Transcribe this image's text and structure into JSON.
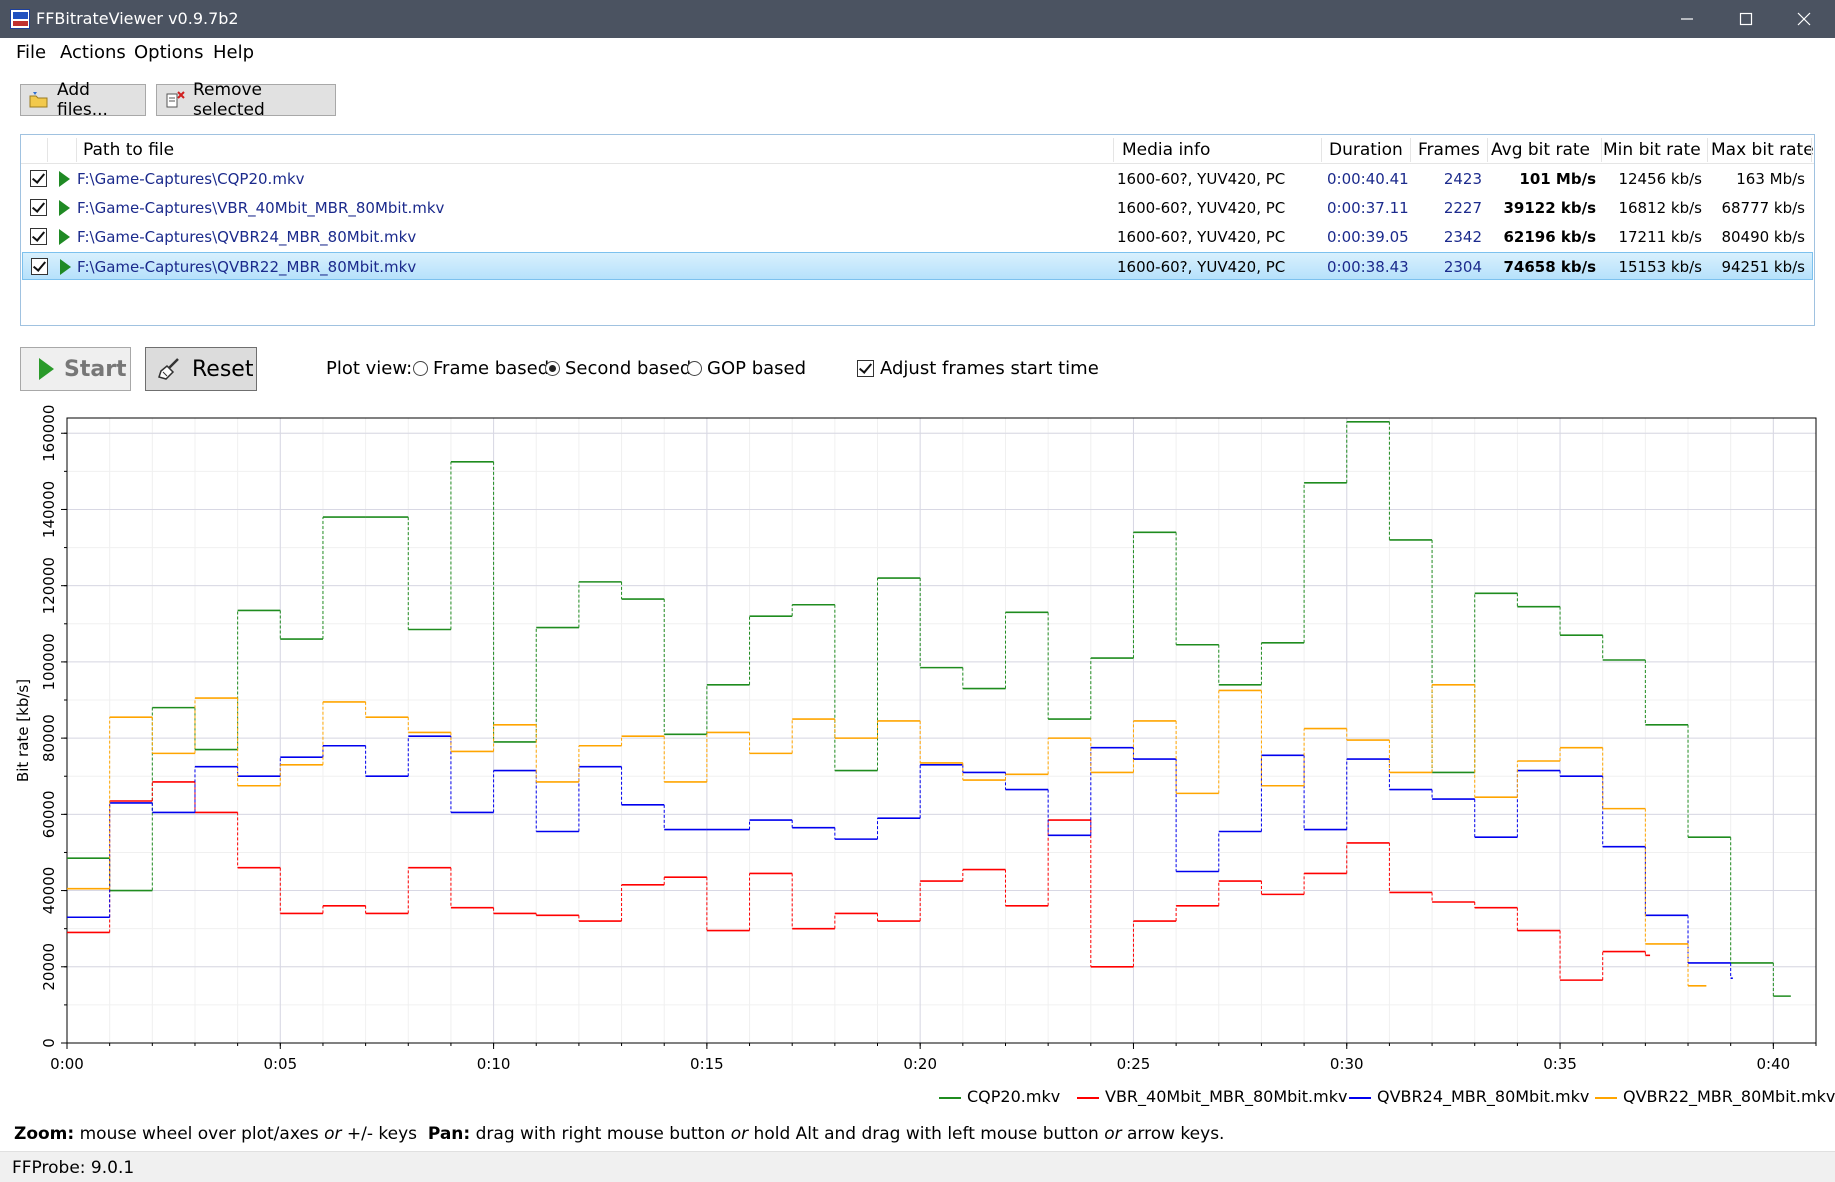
{
  "window": {
    "title": "FFBitrateViewer v0.9.7b2"
  },
  "menu": [
    "File",
    "Actions",
    "Options",
    "Help"
  ],
  "toolbar": {
    "add_files": "Add files...",
    "remove_selected": "Remove selected"
  },
  "file_table": {
    "headers": [
      "Path to file",
      "Media info",
      "Duration",
      "Frames",
      "Avg bit rate",
      "Min bit rate",
      "Max bit rate"
    ],
    "rows": [
      {
        "path": "F:\\Game-Captures\\CQP20.mkv",
        "media": "1600-60?, YUV420, PC",
        "duration": "0:00:40.41",
        "frames": "2423",
        "avg": "101 Mb/s",
        "min": "12456 kb/s",
        "max": "163 Mb/s",
        "checked": true,
        "selected": false
      },
      {
        "path": "F:\\Game-Captures\\VBR_40Mbit_MBR_80Mbit.mkv",
        "media": "1600-60?, YUV420, PC",
        "duration": "0:00:37.11",
        "frames": "2227",
        "avg": "39122 kb/s",
        "min": "16812 kb/s",
        "max": "68777 kb/s",
        "checked": true,
        "selected": false
      },
      {
        "path": "F:\\Game-Captures\\QVBR24_MBR_80Mbit.mkv",
        "media": "1600-60?, YUV420, PC",
        "duration": "0:00:39.05",
        "frames": "2342",
        "avg": "62196 kb/s",
        "min": "17211 kb/s",
        "max": "80490 kb/s",
        "checked": true,
        "selected": false
      },
      {
        "path": "F:\\Game-Captures\\QVBR22_MBR_80Mbit.mkv",
        "media": "1600-60?, YUV420, PC",
        "duration": "0:00:38.43",
        "frames": "2304",
        "avg": "74658 kb/s",
        "min": "15153 kb/s",
        "max": "94251 kb/s",
        "checked": true,
        "selected": true
      }
    ]
  },
  "controls": {
    "start": "Start",
    "reset": "Reset",
    "plot_view_label": "Plot view:",
    "plot_view_options": [
      "Frame based",
      "Second based",
      "GOP based"
    ],
    "plot_view_selected": "Second based",
    "adjust_label": "Adjust frames start time",
    "adjust_checked": true
  },
  "hint": {
    "zoom_label": "Zoom:",
    "zoom_text": " mouse wheel over plot/axes ",
    "or1": "or",
    "zoom_text2": " +/- keys  ",
    "pan_label": "Pan:",
    "pan_text": " drag with right mouse button ",
    "or2": "or",
    "pan_text2": " hold Alt and drag with left mouse button ",
    "or3": "or",
    "pan_text3": " arrow keys."
  },
  "status": "FFProbe: 9.0.1",
  "colors": {
    "cqp20": "#1f8c1f",
    "vbr": "#ff0000",
    "qvbr24": "#0000ee",
    "qvbr22": "#ffa500"
  },
  "chart_data": {
    "type": "line",
    "step": true,
    "ylabel": "Bit rate [kb/s]",
    "xlim": [
      0,
      41
    ],
    "ylim": [
      0,
      164000
    ],
    "xticks": [
      0,
      5,
      10,
      15,
      20,
      25,
      30,
      35,
      40
    ],
    "xtick_labels": [
      "0:00",
      "0:05",
      "0:10",
      "0:15",
      "0:20",
      "0:25",
      "0:30",
      "0:35",
      "0:40"
    ],
    "yticks": [
      0,
      20000,
      40000,
      60000,
      80000,
      100000,
      120000,
      140000,
      160000
    ],
    "ytick_labels": [
      "0",
      "20000",
      "40000",
      "60000",
      "80000",
      "100000",
      "120000",
      "140000",
      "160000"
    ],
    "grid": true,
    "legend_position": "bottom-right",
    "series": [
      {
        "name": "CQP20.mkv",
        "x_start": 0,
        "end": 40.41,
        "values": [
          48500,
          40000,
          88000,
          77000,
          113500,
          106000,
          138000,
          138000,
          108500,
          152500,
          79000,
          109000,
          121000,
          116500,
          81000,
          94000,
          112000,
          115000,
          71500,
          122000,
          98500,
          93000,
          113000,
          85000,
          101000,
          134000,
          104500,
          94000,
          105000,
          147000,
          163000,
          132000,
          71000,
          118000,
          114500,
          107000,
          100500,
          83500,
          54000,
          21000,
          12300
        ]
      },
      {
        "name": "VBR_40Mbit_MBR_80Mbit.mkv",
        "x_start": 0,
        "end": 37.11,
        "values": [
          29000,
          63500,
          68500,
          60500,
          46000,
          34000,
          36000,
          34000,
          46000,
          35500,
          34000,
          33500,
          32000,
          41500,
          43500,
          29500,
          44500,
          30000,
          34000,
          32000,
          42500,
          45500,
          36000,
          58500,
          20000,
          32000,
          36000,
          42500,
          39000,
          44500,
          52500,
          39500,
          37000,
          35500,
          29500,
          16500,
          24000,
          23000
        ]
      },
      {
        "name": "QVBR24_MBR_80Mbit.mkv",
        "x_start": 0,
        "end": 39.05,
        "values": [
          33000,
          63000,
          60500,
          72500,
          70000,
          75000,
          78000,
          70000,
          80500,
          60500,
          71500,
          55500,
          72500,
          62500,
          56000,
          56000,
          58500,
          56500,
          53500,
          59000,
          73000,
          71000,
          66500,
          54500,
          77500,
          74500,
          45000,
          55500,
          75500,
          56000,
          74500,
          66500,
          64000,
          54000,
          71500,
          70000,
          51500,
          33500,
          21000,
          17000
        ]
      },
      {
        "name": "QVBR22_MBR_80Mbit.mkv",
        "x_start": 0,
        "end": 38.43,
        "values": [
          40500,
          85500,
          76000,
          90500,
          67500,
          73000,
          89500,
          85500,
          81500,
          76500,
          83500,
          68500,
          78000,
          80500,
          68500,
          81500,
          76000,
          85000,
          80000,
          84500,
          73500,
          69000,
          70500,
          80000,
          71000,
          84500,
          65500,
          92500,
          67500,
          82500,
          79500,
          71000,
          94000,
          64500,
          74000,
          77500,
          61500,
          26000,
          15000
        ]
      }
    ]
  }
}
